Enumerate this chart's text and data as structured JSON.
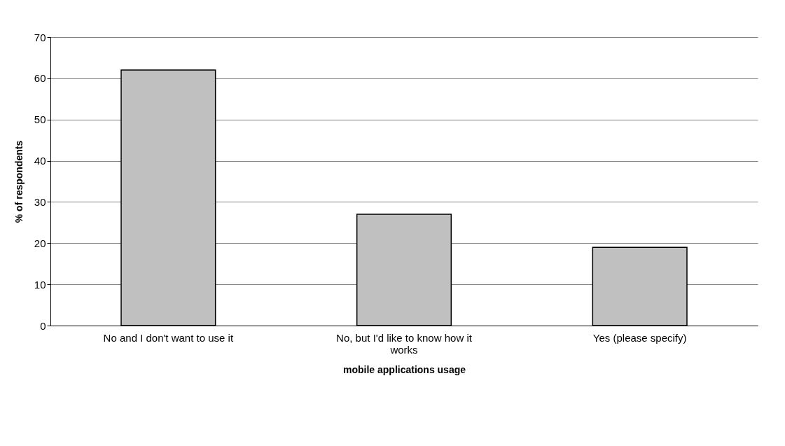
{
  "chart_data": {
    "type": "bar",
    "xlabel": "mobile applications usage",
    "ylabel": "% of respondents",
    "categories": [
      "No and I don't want to use it",
      "No, but I'd like to know how it works",
      "Yes (please specify)"
    ],
    "values": [
      62,
      27,
      19
    ],
    "color": "#c0c0c0",
    "ylim": [
      0,
      70
    ],
    "yticks": [
      0,
      10,
      20,
      30,
      40,
      50,
      60,
      70
    ],
    "grid": "y"
  }
}
